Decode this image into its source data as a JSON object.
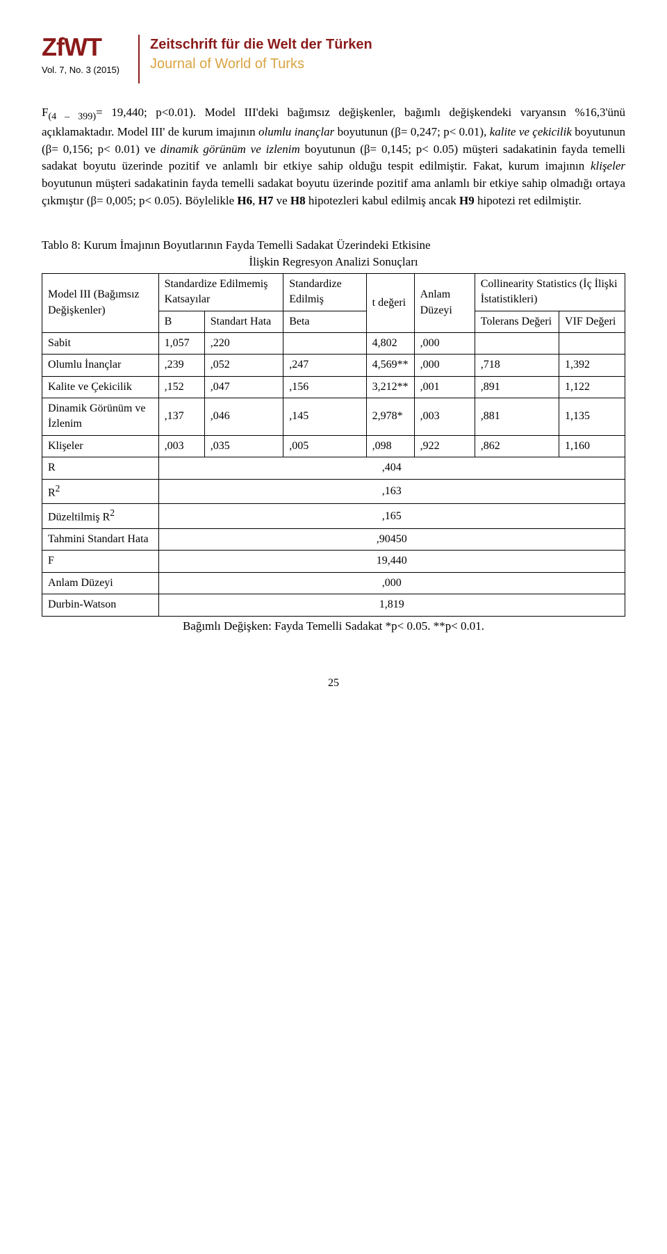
{
  "header": {
    "logo": "ZfWT",
    "vol_issue": "Vol. 7, No. 3 (2015)",
    "journal_de": "Zeitschrift für die Welt der Türken",
    "journal_en": "Journal of World of Turks"
  },
  "body": {
    "p1a": "F",
    "p1sub": "(4 – 399)",
    "p1b": "= 19,440; p<0.01). Model III'deki bağımsız değişkenler, bağımlı değişkendeki varyansın %16,3'ünü açıklamaktadır. Model III' de kurum imajının ",
    "p1c": "olumlu inançlar",
    "p1d": " boyutunun (β= 0,247; p< 0.01), ",
    "p1e": "kalite ve çekicilik",
    "p1f": " boyutunun (β= 0,156; p< 0.01) ve ",
    "p1g": "dinamik görünüm ve izlenim",
    "p1h": " boyutunun (β= 0,145; p< 0.05) müşteri sadakatinin fayda temelli sadakat boyutu üzerinde pozitif ve anlamlı bir etkiye sahip olduğu tespit edilmiştir. Fakat, kurum imajının ",
    "p1i": "klişeler",
    "p1j": " boyutunun müşteri sadakatinin fayda temelli sadakat boyutu üzerinde pozitif ama anlamlı bir etkiye sahip olmadığı ortaya çıkmıştır (β= 0,005; p< 0.05). Böylelikle ",
    "p1k": "H6",
    "p1l": ", ",
    "p1m": "H7",
    "p1n": " ve ",
    "p1o": "H8",
    "p1p": " hipotezleri kabul edilmiş ancak ",
    "p1q": "H9",
    "p1r": " hipotezi ret edilmiştir."
  },
  "table": {
    "title": "Tablo 8: Kurum İmajının Boyutlarının Fayda Temelli Sadakat Üzerindeki Etkisine",
    "subtitle": "İlişkin Regresyon Analizi Sonuçları",
    "h_model": "Model III (Bağımsız Değişkenler)",
    "h_std_unweighted": "Standardize Edilmemiş Katsayılar",
    "h_std_weighted": "Standardize Edilmiş",
    "h_t": "t değeri",
    "h_anlam": "Anlam Düzeyi",
    "h_collinearity1": "Collinearity Statistics      (İç İlişki İstatistikleri)",
    "h_B": "B",
    "h_stdhata": "Standart Hata",
    "h_beta": "Beta",
    "h_tolerans": "Tolerans Değeri",
    "h_vif": "VIF Değeri",
    "rows": [
      {
        "label": "Sabit",
        "b": "1,057",
        "sh": ",220",
        "beta": "",
        "t": "4,802",
        "p": ",000",
        "tol": "",
        "vif": ""
      },
      {
        "label": "Olumlu İnançlar",
        "b": ",239",
        "sh": ",052",
        "beta": ",247",
        "t": "4,569**",
        "p": ",000",
        "tol": ",718",
        "vif": "1,392"
      },
      {
        "label": "Kalite ve Çekicilik",
        "b": ",152",
        "sh": ",047",
        "beta": ",156",
        "t": "3,212**",
        "p": ",001",
        "tol": ",891",
        "vif": "1,122"
      },
      {
        "label": "Dinamik Görünüm ve İzlenim",
        "b": ",137",
        "sh": ",046",
        "beta": ",145",
        "t": "2,978*",
        "p": ",003",
        "tol": ",881",
        "vif": "1,135"
      },
      {
        "label": "Klişeler",
        "b": ",003",
        "sh": ",035",
        "beta": ",005",
        "t": ",098",
        "p": ",922",
        "tol": ",862",
        "vif": "1,160"
      }
    ],
    "stats": [
      {
        "label": "R",
        "value": ",404"
      },
      {
        "label": "R²",
        "value": ",163"
      },
      {
        "label": "Düzeltilmiş R²",
        "value": ",165"
      },
      {
        "label": "Tahmini Standart Hata",
        "value": ",90450"
      },
      {
        "label": "F",
        "value": "19,440"
      },
      {
        "label": "Anlam Düzeyi",
        "value": ",000"
      },
      {
        "label": "Durbin-Watson",
        "value": "1,819"
      }
    ],
    "footer": "Bağımlı Değişken: Fayda Temelli Sadakat *p< 0.05. **p< 0.01."
  },
  "page_num": "25"
}
